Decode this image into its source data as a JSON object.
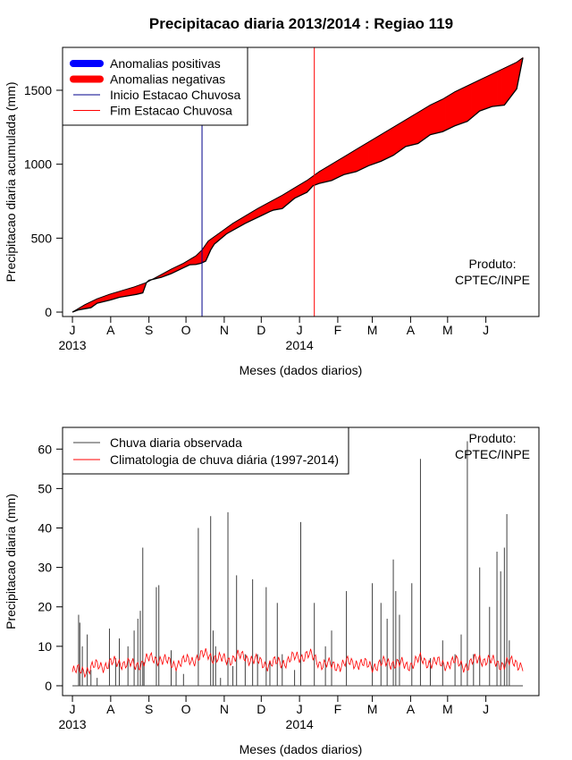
{
  "title": "Precipitacao diaria 2013/2014 : Regiao 119",
  "chart_data": [
    {
      "type": "area",
      "ylabel": "Precipitacao diaria acumulada (mm)",
      "xlabel": "Meses (dados diarios)",
      "x_ticks": [
        "J",
        "A",
        "S",
        "O",
        "N",
        "D",
        "J",
        "F",
        "M",
        "A",
        "M",
        "J"
      ],
      "x_tick_days": [
        0,
        31,
        62,
        92,
        123,
        153,
        184,
        215,
        243,
        274,
        304,
        335
      ],
      "year_labels": [
        {
          "label": "2013",
          "day": 0
        },
        {
          "label": "2014",
          "day": 184
        }
      ],
      "xlim_days": [
        -8,
        378
      ],
      "ylim": [
        -30,
        1790
      ],
      "y_ticks": [
        0,
        500,
        1000,
        1500
      ],
      "legend": [
        {
          "name": "Anomalias positivas",
          "color": "#0000ff",
          "style": "thick"
        },
        {
          "name": "Anomalias negativas",
          "color": "#ff0000",
          "style": "thick"
        },
        {
          "name": "Inicio Estacao Chuvosa",
          "color": "#00008b",
          "style": "thin"
        },
        {
          "name": "Fim Estacao Chuvosa",
          "color": "#ff0000",
          "style": "thin"
        }
      ],
      "inicio_estacao_day": 105,
      "fim_estacao_day": 196,
      "observed_cumulative": {
        "days": [
          0,
          5,
          15,
          20,
          30,
          38,
          45,
          52,
          57,
          60,
          62,
          72,
          80,
          90,
          95,
          100,
          104,
          108,
          112,
          115,
          125,
          140,
          155,
          160,
          163,
          170,
          180,
          190,
          195,
          200,
          210,
          220,
          230,
          240,
          250,
          260,
          270,
          280,
          290,
          300,
          310,
          320,
          330,
          340,
          350,
          360,
          365
        ],
        "values": [
          0,
          15,
          30,
          60,
          80,
          100,
          110,
          120,
          130,
          200,
          215,
          235,
          260,
          300,
          320,
          322,
          330,
          345,
          420,
          460,
          530,
          600,
          660,
          680,
          690,
          700,
          770,
          810,
          855,
          870,
          890,
          930,
          950,
          990,
          1020,
          1060,
          1120,
          1140,
          1200,
          1220,
          1260,
          1290,
          1360,
          1390,
          1400,
          1510,
          1720
        ]
      },
      "climatology_cumulative": {
        "days": [
          0,
          5,
          10,
          20,
          30,
          40,
          50,
          60,
          70,
          80,
          90,
          100,
          105,
          110,
          120,
          130,
          140,
          150,
          160,
          170,
          180,
          190,
          200,
          210,
          220,
          230,
          240,
          250,
          260,
          270,
          280,
          290,
          300,
          310,
          320,
          330,
          340,
          350,
          360,
          365
        ],
        "values": [
          0,
          25,
          50,
          90,
          120,
          145,
          170,
          200,
          245,
          290,
          330,
          380,
          420,
          480,
          540,
          600,
          650,
          700,
          745,
          790,
          840,
          890,
          950,
          1000,
          1050,
          1100,
          1150,
          1200,
          1250,
          1300,
          1350,
          1400,
          1440,
          1490,
          1530,
          1570,
          1610,
          1650,
          1690,
          1720
        ]
      },
      "annotation": [
        "Produto:",
        "CPTEC/INPE"
      ]
    },
    {
      "type": "bar",
      "ylabel": "Precipitacao diaria (mm)",
      "xlabel": "Meses (dados diarios)",
      "x_ticks": [
        "J",
        "A",
        "S",
        "O",
        "N",
        "D",
        "J",
        "F",
        "M",
        "A",
        "M",
        "J"
      ],
      "x_tick_days": [
        0,
        31,
        62,
        92,
        123,
        153,
        184,
        215,
        243,
        274,
        304,
        335
      ],
      "year_labels": [
        {
          "label": "2013",
          "day": 0
        },
        {
          "label": "2014",
          "day": 184
        }
      ],
      "xlim_days": [
        -8,
        378
      ],
      "ylim": [
        -2.5,
        65.5
      ],
      "y_ticks": [
        0,
        10,
        20,
        30,
        40,
        50,
        60
      ],
      "legend": [
        {
          "name": "Chuva diaria observada",
          "color": "#404040"
        },
        {
          "name": "Climatologia de chuva diária (1997-2014)",
          "color": "#ff0000"
        }
      ],
      "observed_daily": {
        "days": [
          5,
          6,
          8,
          12,
          15,
          20,
          30,
          35,
          38,
          45,
          50,
          53,
          55,
          57,
          58,
          68,
          70,
          80,
          84,
          90,
          102,
          112,
          114,
          116,
          120,
          126,
          130,
          133,
          140,
          146,
          150,
          157,
          160,
          166,
          170,
          180,
          185,
          196,
          205,
          210,
          222,
          243,
          250,
          255,
          260,
          262,
          265,
          275,
          282,
          290,
          300,
          310,
          315,
          320,
          325,
          330,
          338,
          344,
          347,
          350,
          352,
          354
        ],
        "values": [
          18,
          16,
          10,
          13,
          4,
          2,
          14.5,
          7,
          12,
          10,
          14,
          17,
          19,
          35,
          6,
          25,
          25.5,
          9,
          4,
          3,
          40,
          43,
          14,
          10,
          2,
          44,
          5,
          28,
          8,
          27,
          8,
          25,
          6,
          21,
          8,
          4,
          41.5,
          21,
          10,
          14,
          24,
          26,
          21,
          17,
          32,
          24,
          18,
          26,
          57.5,
          7,
          11.5,
          8,
          13,
          62,
          8,
          30,
          20,
          34,
          29,
          35,
          43.5,
          11.5
        ]
      },
      "climatology_daily": {
        "days": [
          0,
          10,
          20,
          30,
          40,
          50,
          60,
          70,
          80,
          90,
          100,
          110,
          120,
          130,
          140,
          150,
          160,
          170,
          180,
          190,
          200,
          210,
          220,
          230,
          240,
          250,
          260,
          270,
          280,
          290,
          300,
          310,
          320,
          330,
          340,
          350,
          360,
          365
        ],
        "values": [
          3.5,
          4,
          5,
          5.5,
          6,
          5,
          6.5,
          7,
          5.5,
          6,
          7,
          8,
          6.5,
          7,
          7.5,
          6,
          5.5,
          6,
          7,
          8,
          6,
          5,
          5.5,
          6,
          5,
          5.5,
          6,
          5,
          6.5,
          6,
          5.5,
          6,
          5,
          7,
          6,
          5.5,
          6,
          5
        ]
      },
      "annotation": [
        "Produto:",
        "CPTEC/INPE"
      ]
    }
  ]
}
